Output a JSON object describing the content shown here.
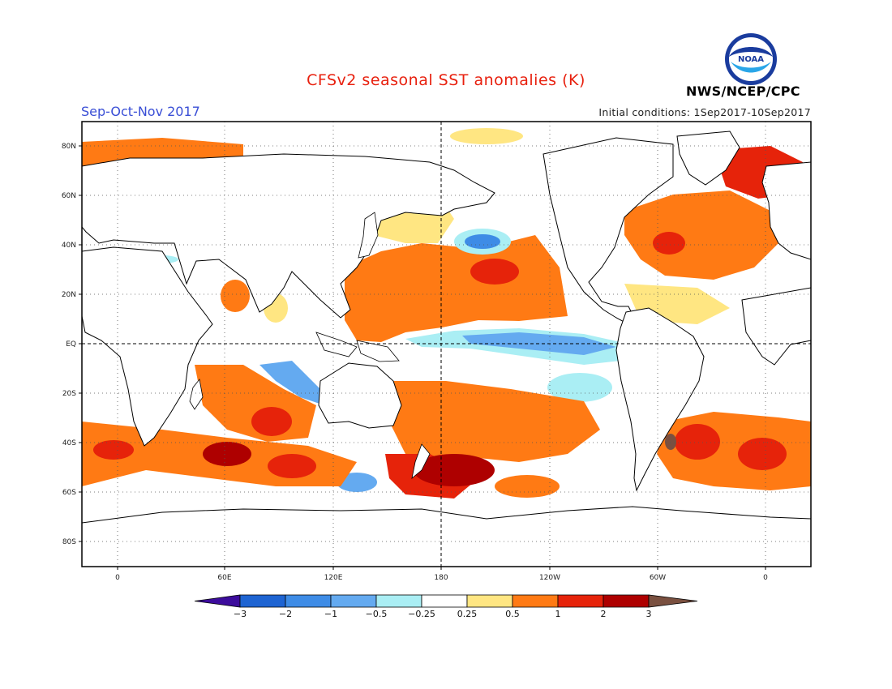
{
  "header": {
    "title": "CFSv2 seasonal SST anomalies (K)",
    "period": "Sep-Oct-Nov 2017",
    "initial_conditions": "Initial conditions: 1Sep2017-10Sep2017",
    "agency": "NWS/NCEP/CPC",
    "logo_text": "NOAA"
  },
  "map": {
    "lat_labels": [
      "80N",
      "60N",
      "40N",
      "20N",
      "EQ",
      "20S",
      "40S",
      "60S",
      "80S"
    ],
    "lon_labels": [
      "0",
      "60E",
      "120E",
      "180",
      "120W",
      "60W",
      "0"
    ]
  },
  "colorbar": {
    "labels": [
      "-3",
      "-2",
      "-1",
      "-0.5",
      "-0.25",
      "0.25",
      "0.5",
      "1",
      "2",
      "3"
    ],
    "colors": [
      "#3c0c9c",
      "#1e64d2",
      "#3e8ce6",
      "#64aaf0",
      "#aaeef4",
      "#ffffff",
      "#ffe682",
      "#ff7a14",
      "#e6230a",
      "#ae0000",
      "#7a5040"
    ]
  },
  "colors": {
    "title": "#e8200e",
    "period": "#3a4fd6",
    "land": "#ffffff",
    "coast": "#000000"
  }
}
